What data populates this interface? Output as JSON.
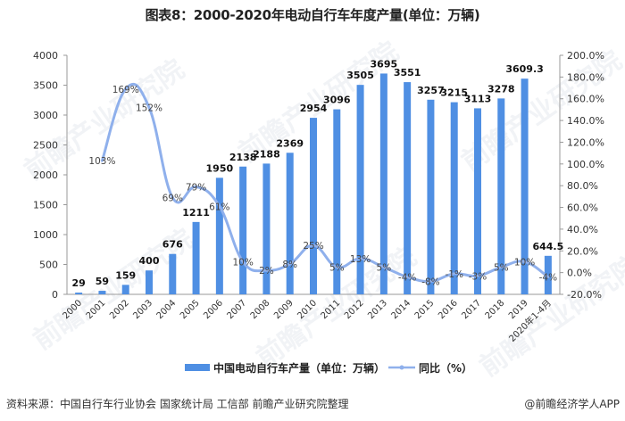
{
  "title": "图表8：2000-2020年电动自行车年度产量(单位：万辆)",
  "source": "资料来源：中国自行车行业协会 国家统计局 工信部 前瞻产业研究院整理",
  "credit": "@前瞻经济学人APP",
  "watermark": "前瞻产业研究院",
  "colors": {
    "bar": "#4f8fe3",
    "line": "#8fb0ec",
    "axis": "#999999",
    "text": "#333333"
  },
  "chart_data": {
    "type": "bar",
    "title": "图表8：2000-2020年电动自行车年度产量(单位：万辆)",
    "categories": [
      "2000",
      "2001",
      "2002",
      "2003",
      "2004",
      "2005",
      "2006",
      "2007",
      "2008",
      "2009",
      "2010",
      "2011",
      "2012",
      "2013",
      "2014",
      "2015",
      "2016",
      "2017",
      "2018",
      "2019",
      "2020年1-4月"
    ],
    "series": [
      {
        "name": "中国电动自行车产量（单位：万辆）",
        "type": "bar",
        "axis": "left",
        "values": [
          29,
          59,
          159,
          400,
          676,
          1211,
          1950,
          2138,
          2188,
          2369,
          2954,
          3096,
          3505,
          3695,
          3551,
          3257,
          3215,
          3113,
          3278,
          3609.3,
          644.5
        ],
        "labels": [
          "29",
          "59",
          "159",
          "400",
          "676",
          "1211",
          "1950",
          "2138",
          "2188",
          "2369",
          "2954",
          "3096",
          "3505",
          "3695",
          "3551",
          "3257",
          "3215",
          "3113",
          "3278",
          "3609.3",
          "644.5"
        ]
      },
      {
        "name": "同比（%）",
        "type": "line",
        "axis": "right",
        "values": [
          null,
          103,
          169,
          152,
          69,
          79,
          61,
          10,
          2,
          8,
          25,
          5,
          13,
          5,
          -4,
          -8,
          -1,
          -3,
          5,
          10,
          -4
        ],
        "labels": [
          "",
          "103%",
          "169%",
          "152%",
          "69%",
          "79%",
          "61%",
          "10%",
          "2%",
          "8%",
          "25%",
          "5%",
          "13%",
          "5%",
          "-4%",
          "-8%",
          "-1%",
          "-3%",
          "5%",
          "10%",
          "-4%"
        ]
      }
    ],
    "y_left": {
      "range": [
        0,
        4000
      ],
      "ticks": [
        "0",
        "500",
        "1000",
        "1500",
        "2000",
        "2500",
        "3000",
        "3500",
        "4000"
      ],
      "tick_values": [
        0,
        500,
        1000,
        1500,
        2000,
        2500,
        3000,
        3500,
        4000
      ]
    },
    "y_right": {
      "range": [
        -20,
        200
      ],
      "ticks": [
        "-20.0%",
        "0.0%",
        "20.0%",
        "40.0%",
        "60.0%",
        "80.0%",
        "100.0%",
        "120.0%",
        "140.0%",
        "160.0%",
        "180.0%",
        "200.0%"
      ],
      "tick_values": [
        -20,
        0,
        20,
        40,
        60,
        80,
        100,
        120,
        140,
        160,
        180,
        200
      ]
    },
    "xlabel": "",
    "ylabel": "",
    "grid": false,
    "legend": {
      "position": "bottom",
      "entries": [
        "中国电动自行车产量（单位：万辆）",
        "同比（%）"
      ]
    }
  }
}
